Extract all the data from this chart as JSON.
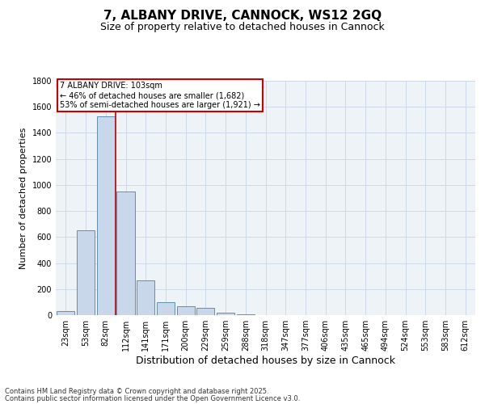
{
  "title": "7, ALBANY DRIVE, CANNOCK, WS12 2GQ",
  "subtitle": "Size of property relative to detached houses in Cannock",
  "xlabel": "Distribution of detached houses by size in Cannock",
  "ylabel": "Number of detached properties",
  "categories": [
    "23sqm",
    "53sqm",
    "82sqm",
    "112sqm",
    "141sqm",
    "171sqm",
    "200sqm",
    "229sqm",
    "259sqm",
    "288sqm",
    "318sqm",
    "347sqm",
    "377sqm",
    "406sqm",
    "435sqm",
    "465sqm",
    "494sqm",
    "524sqm",
    "553sqm",
    "583sqm",
    "612sqm"
  ],
  "values": [
    30,
    650,
    1530,
    950,
    265,
    100,
    70,
    55,
    18,
    5,
    3,
    2,
    1,
    0,
    0,
    0,
    0,
    0,
    0,
    0,
    0
  ],
  "bar_color": "#c8d8ea",
  "bar_edge_color": "#6090b0",
  "vline_color": "#cc0000",
  "vline_pos": 2.5,
  "annotation_text": "7 ALBANY DRIVE: 103sqm\n← 46% of detached houses are smaller (1,682)\n53% of semi-detached houses are larger (1,921) →",
  "annotation_box_color": "#cc0000",
  "ylim": [
    0,
    1800
  ],
  "yticks": [
    0,
    200,
    400,
    600,
    800,
    1000,
    1200,
    1400,
    1600,
    1800
  ],
  "grid_color": "#ccd8e8",
  "background_color": "#eef3f8",
  "footer_line1": "Contains HM Land Registry data © Crown copyright and database right 2025.",
  "footer_line2": "Contains public sector information licensed under the Open Government Licence v3.0.",
  "title_fontsize": 11,
  "subtitle_fontsize": 9,
  "xlabel_fontsize": 9,
  "ylabel_fontsize": 8,
  "tick_fontsize": 7,
  "annotation_fontsize": 7,
  "footer_fontsize": 6
}
